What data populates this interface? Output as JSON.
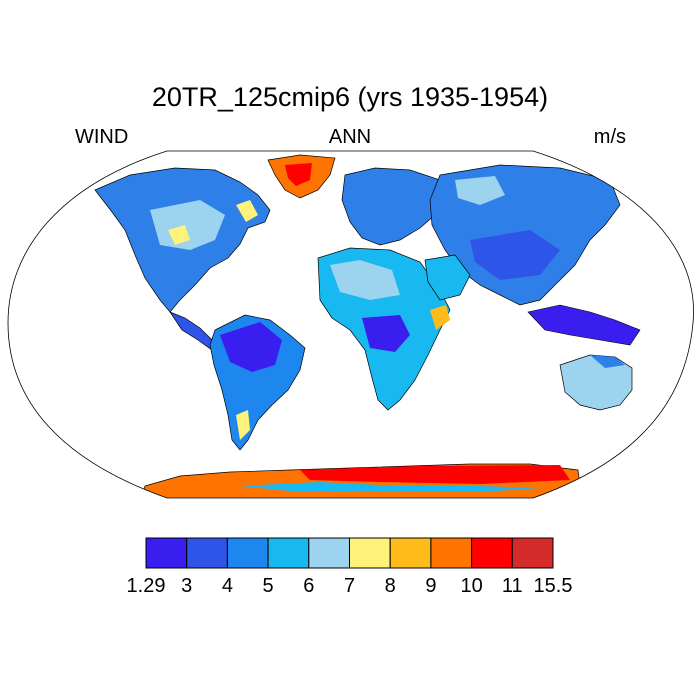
{
  "title": "20TR_125cmip6 (yrs 1935-1954)",
  "left_label": "WIND",
  "center_label": "ANN",
  "right_label": "m/s",
  "colorbar": {
    "labels": [
      "1.29",
      "3",
      "4",
      "5",
      "6",
      "7",
      "8",
      "9",
      "10",
      "11",
      "15.5"
    ],
    "colors": [
      "#3a1ef0",
      "#2f55e8",
      "#1e86ef",
      "#18b8f0",
      "#9cd3ef",
      "#fff27a",
      "#ffbb1a",
      "#ff7300",
      "#ff0000",
      "#d42a2a"
    ]
  },
  "colors": {
    "ocean": "#ffffff",
    "coast": "#000000"
  }
}
